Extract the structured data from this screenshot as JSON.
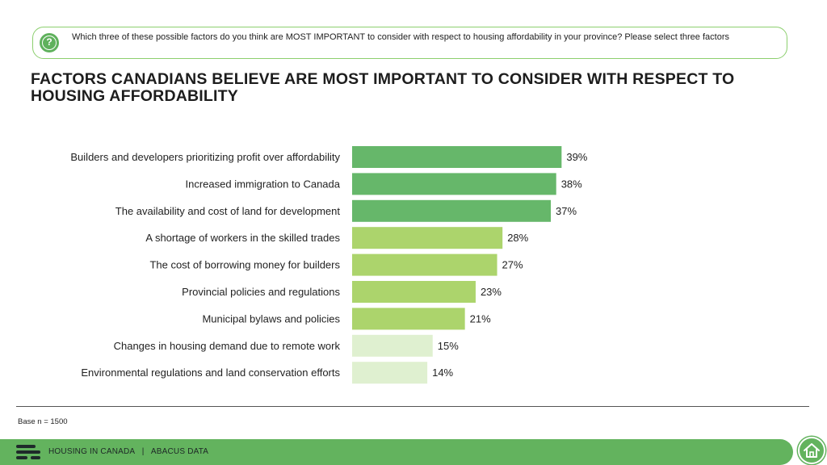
{
  "question": {
    "text": "Which three of these possible factors do you think are MOST IMPORTANT to consider with respect to housing affordability in your province? Please select three factors"
  },
  "title": "FACTORS CANADIANS BELIEVE ARE MOST IMPORTANT TO CONSIDER WITH RESPECT TO HOUSING AFFORDABILITY",
  "base": "Base n = 1500",
  "footer": {
    "section": "HOUSING IN CANADA",
    "separator": "|",
    "brand": "ABACUS DATA"
  },
  "colors": {
    "accent": "#63b35e",
    "tier_high": "#66b76a",
    "tier_mid": "#acd46c",
    "tier_low": "#dff0d0"
  },
  "chart_data": {
    "type": "bar",
    "orientation": "horizontal",
    "categories": [
      "Builders and developers prioritizing profit over affordability",
      "Increased immigration to Canada",
      "The availability and cost of land for development",
      "A shortage of workers in the skilled trades",
      "The cost of borrowing money for builders",
      "Provincial policies and regulations",
      "Municipal bylaws and policies",
      "Changes in housing demand due to remote work",
      "Environmental regulations and land conservation efforts"
    ],
    "values": [
      39,
      38,
      37,
      28,
      27,
      23,
      21,
      15,
      14
    ],
    "value_labels": [
      "39%",
      "38%",
      "37%",
      "28%",
      "27%",
      "23%",
      "21%",
      "15%",
      "14%"
    ],
    "bar_colors": [
      "#66b76a",
      "#66b76a",
      "#66b76a",
      "#acd46c",
      "#acd46c",
      "#acd46c",
      "#acd46c",
      "#dff0d0",
      "#dff0d0"
    ],
    "xlim": [
      0,
      100
    ],
    "grid": false,
    "legend": "none"
  }
}
